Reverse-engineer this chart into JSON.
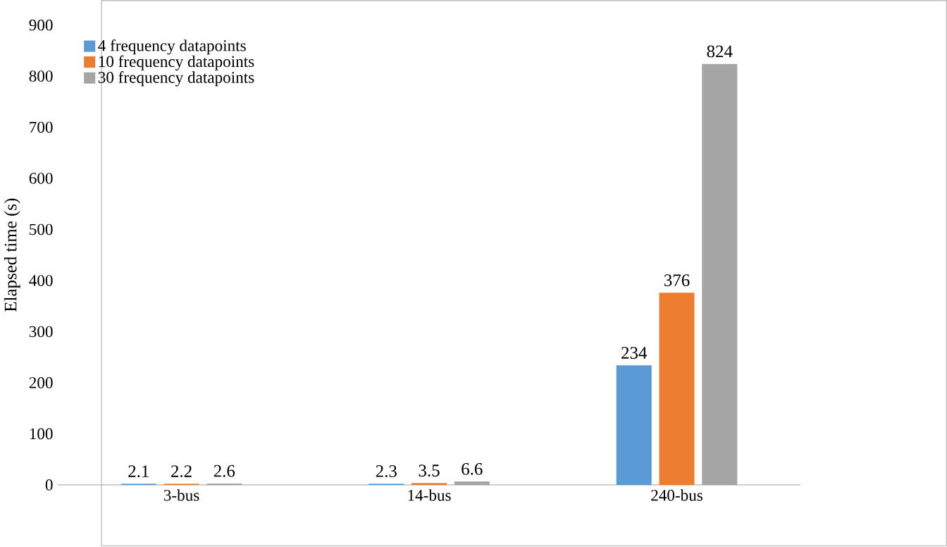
{
  "chart_data": {
    "type": "bar",
    "ylabel": "Elapsed time (s)",
    "categories": [
      "3-bus",
      "14-bus",
      "240-bus"
    ],
    "series": [
      {
        "name": "4 frequency datapoints",
        "color": "#5b9bd5",
        "values": [
          2.1,
          2.3,
          234
        ]
      },
      {
        "name": "10 frequency datapoints",
        "color": "#ed7d31",
        "values": [
          2.2,
          3.5,
          376
        ]
      },
      {
        "name": "30 frequency datapoints",
        "color": "#a5a5a5",
        "values": [
          2.6,
          6.6,
          824
        ]
      }
    ],
    "ylim": [
      0,
      900
    ],
    "yticks": [
      0,
      100,
      200,
      300,
      400,
      500,
      600,
      700,
      800,
      900
    ],
    "data_labels": true,
    "legend": "top left",
    "grid": false
  }
}
